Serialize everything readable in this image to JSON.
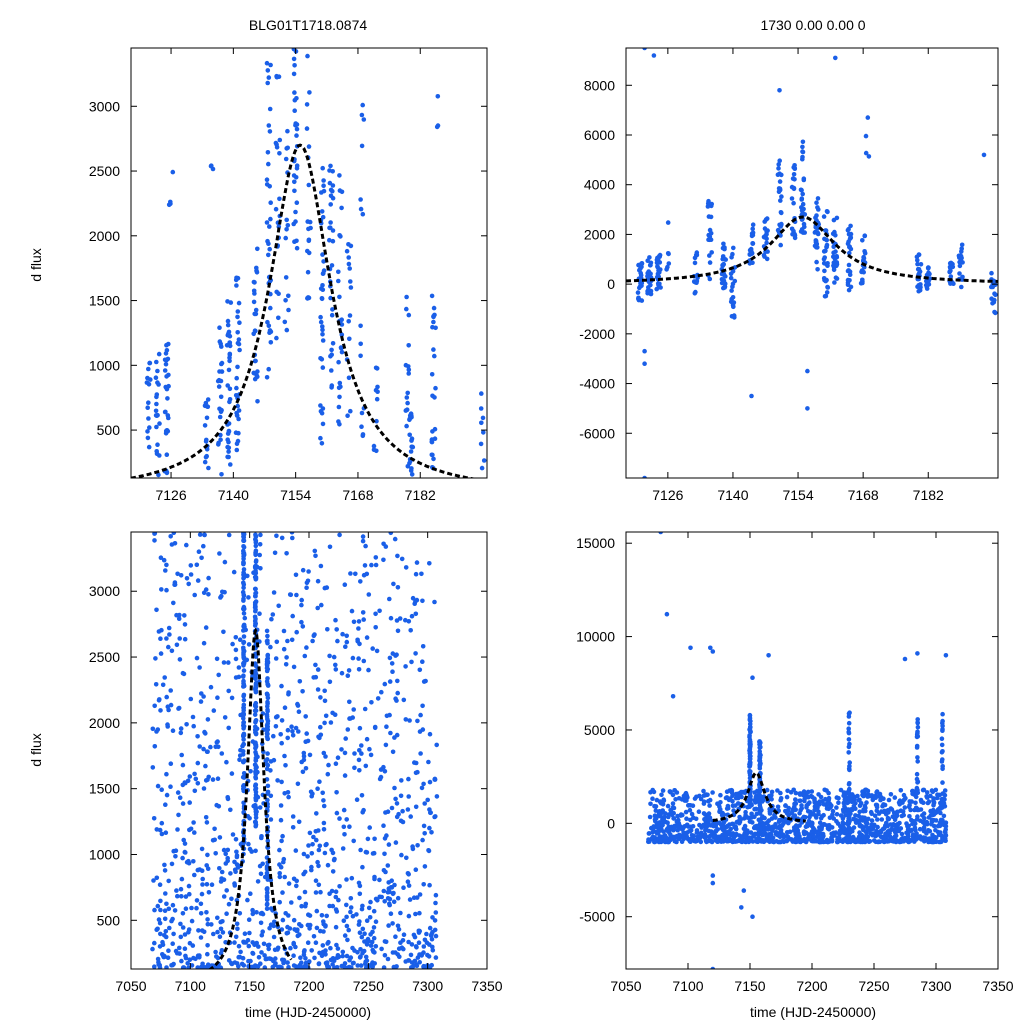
{
  "figure": {
    "title_left": "BLG01T1718.0874",
    "title_right": "1730  0.00  0.00  0",
    "ylabel": "d flux",
    "xlabel": "time (HJD-2450000)"
  },
  "colors": {
    "points": "#1a5fe8",
    "fit": "#000000",
    "frame": "#000000"
  },
  "chart_data": [
    {
      "type": "scatter",
      "id": "top-left",
      "xlim": [
        7117,
        7197
      ],
      "ylim": [
        130,
        3450
      ],
      "xticks": [
        7126,
        7140,
        7154,
        7168,
        7182
      ],
      "yticks": [
        500,
        1000,
        1500,
        2000,
        2500,
        3000
      ],
      "xlabel": "",
      "ylabel": "d flux",
      "fit": {
        "t0": 7155,
        "peak": 2700,
        "tau": 8.5
      },
      "clusters": [
        {
          "x": 7121,
          "lo": 150,
          "hi": 1100,
          "n": 14
        },
        {
          "x": 7123,
          "lo": 150,
          "hi": 1100,
          "n": 20
        },
        {
          "x": 7125,
          "lo": 150,
          "hi": 1250,
          "n": 28
        },
        {
          "x": 7126,
          "lo": 2220,
          "hi": 2520,
          "n": 4
        },
        {
          "x": 7134,
          "lo": 200,
          "hi": 750,
          "n": 15
        },
        {
          "x": 7135,
          "lo": 2140,
          "hi": 2620,
          "n": 3
        },
        {
          "x": 7137,
          "lo": 150,
          "hi": 1400,
          "n": 22
        },
        {
          "x": 7139,
          "lo": 150,
          "hi": 1500,
          "n": 35
        },
        {
          "x": 7141,
          "lo": 300,
          "hi": 1700,
          "n": 30
        },
        {
          "x": 7145,
          "lo": 700,
          "hi": 1900,
          "n": 25
        },
        {
          "x": 7148,
          "lo": 900,
          "hi": 3350,
          "n": 35
        },
        {
          "x": 7150,
          "lo": 1000,
          "hi": 3300,
          "n": 20
        },
        {
          "x": 7152,
          "lo": 1250,
          "hi": 3000,
          "n": 15
        },
        {
          "x": 7154,
          "lo": 1900,
          "hi": 3450,
          "n": 30
        },
        {
          "x": 7157,
          "lo": 1500,
          "hi": 3400,
          "n": 20
        },
        {
          "x": 7160,
          "lo": 380,
          "hi": 2600,
          "n": 35
        },
        {
          "x": 7162,
          "lo": 800,
          "hi": 2600,
          "n": 30
        },
        {
          "x": 7164,
          "lo": 500,
          "hi": 2500,
          "n": 25
        },
        {
          "x": 7166,
          "lo": 500,
          "hi": 2300,
          "n": 15
        },
        {
          "x": 7169,
          "lo": 200,
          "hi": 3300,
          "n": 15
        },
        {
          "x": 7172,
          "lo": 300,
          "hi": 1000,
          "n": 10
        },
        {
          "x": 7179,
          "lo": 150,
          "hi": 1700,
          "n": 15
        },
        {
          "x": 7180,
          "lo": 150,
          "hi": 700,
          "n": 20
        },
        {
          "x": 7185,
          "lo": 200,
          "hi": 1600,
          "n": 25
        },
        {
          "x": 7186,
          "lo": 2700,
          "hi": 3150,
          "n": 3
        },
        {
          "x": 7196,
          "lo": 150,
          "hi": 800,
          "n": 8
        }
      ]
    },
    {
      "type": "scatter",
      "id": "top-right",
      "xlim": [
        7117,
        7197
      ],
      "ylim": [
        -7800,
        9500
      ],
      "xticks": [
        7126,
        7140,
        7154,
        7168,
        7182
      ],
      "yticks": [
        -6000,
        -4000,
        -2000,
        0,
        2000,
        4000,
        6000,
        8000
      ],
      "xlabel": "",
      "ylabel": "",
      "fit": {
        "t0": 7155,
        "peak": 2700,
        "tau": 8.5,
        "base": 0
      },
      "clusters": [
        {
          "x": 7120,
          "lo": -800,
          "hi": 900,
          "n": 25
        },
        {
          "x": 7122,
          "lo": -400,
          "hi": 1100,
          "n": 25
        },
        {
          "x": 7124,
          "lo": -300,
          "hi": 1200,
          "n": 25
        },
        {
          "x": 7126,
          "lo": 500,
          "hi": 2500,
          "n": 6
        },
        {
          "x": 7132,
          "lo": -400,
          "hi": 1300,
          "n": 15
        },
        {
          "x": 7135,
          "lo": 0,
          "hi": 3400,
          "n": 20
        },
        {
          "x": 7138,
          "lo": -200,
          "hi": 1700,
          "n": 30
        },
        {
          "x": 7140,
          "lo": -1600,
          "hi": 1500,
          "n": 20
        },
        {
          "x": 7144,
          "lo": 800,
          "hi": 2400,
          "n": 20
        },
        {
          "x": 7147,
          "lo": 1000,
          "hi": 2700,
          "n": 20
        },
        {
          "x": 7150,
          "lo": 1300,
          "hi": 5300,
          "n": 25
        },
        {
          "x": 7153,
          "lo": 1200,
          "hi": 5000,
          "n": 20
        },
        {
          "x": 7155,
          "lo": 2000,
          "hi": 5900,
          "n": 30
        },
        {
          "x": 7158,
          "lo": 500,
          "hi": 3500,
          "n": 30
        },
        {
          "x": 7160,
          "lo": -600,
          "hi": 3000,
          "n": 30
        },
        {
          "x": 7162,
          "lo": 0,
          "hi": 2700,
          "n": 25
        },
        {
          "x": 7165,
          "lo": -300,
          "hi": 2400,
          "n": 25
        },
        {
          "x": 7168,
          "lo": 0,
          "hi": 2000,
          "n": 20
        },
        {
          "x": 7169,
          "lo": 4500,
          "hi": 6900,
          "n": 3
        },
        {
          "x": 7180,
          "lo": -400,
          "hi": 1200,
          "n": 20
        },
        {
          "x": 7182,
          "lo": -200,
          "hi": 800,
          "n": 15
        },
        {
          "x": 7187,
          "lo": -200,
          "hi": 1000,
          "n": 15
        },
        {
          "x": 7189,
          "lo": -300,
          "hi": 1600,
          "n": 20
        },
        {
          "x": 7196,
          "lo": -1200,
          "hi": 700,
          "n": 15
        }
      ],
      "outliers": [
        [
          7121,
          9500
        ],
        [
          7123,
          9200
        ],
        [
          7121,
          -2700
        ],
        [
          7121,
          -3200
        ],
        [
          7121,
          -7800
        ],
        [
          7150,
          7800
        ],
        [
          7156,
          -3500
        ],
        [
          7156,
          -5000
        ],
        [
          7144,
          -4500
        ],
        [
          7162,
          9100
        ],
        [
          7169,
          6700
        ],
        [
          7194,
          5200
        ]
      ]
    },
    {
      "type": "scatter",
      "id": "bottom-left",
      "xlim": [
        7050,
        7350
      ],
      "ylim": [
        130,
        3450
      ],
      "xticks": [
        7050,
        7100,
        7150,
        7200,
        7250,
        7300,
        7350
      ],
      "yticks": [
        500,
        1000,
        1500,
        2000,
        2500,
        3000
      ],
      "xlabel": "time (HJD-2450000)",
      "ylabel": "d flux",
      "fit": {
        "t0": 7155,
        "peak": 2700,
        "tau": 8.5,
        "xmin": 7110,
        "xmax": 7185
      },
      "band": {
        "xmin": 7068,
        "xmax": 7308,
        "lo": 140,
        "hi": 3450,
        "n": 1300,
        "seed": 7
      },
      "clusters": [
        {
          "x": 7145,
          "lo": 1000,
          "hi": 3450,
          "n": 120
        },
        {
          "x": 7155,
          "lo": 1200,
          "hi": 3450,
          "n": 140
        },
        {
          "x": 7165,
          "lo": 600,
          "hi": 2700,
          "n": 80
        }
      ]
    },
    {
      "type": "scatter",
      "id": "bottom-right",
      "xlim": [
        7050,
        7350
      ],
      "ylim": [
        -7800,
        15600
      ],
      "xticks": [
        7050,
        7100,
        7150,
        7200,
        7250,
        7300,
        7350
      ],
      "yticks": [
        -5000,
        0,
        5000,
        10000,
        15000
      ],
      "xlabel": "time (HJD-2450000)",
      "ylabel": "",
      "fit": {
        "t0": 7155,
        "peak": 2700,
        "tau": 8.5,
        "base": 0,
        "xmin": 7120,
        "xmax": 7195
      },
      "band": {
        "xmin": 7068,
        "xmax": 7308,
        "lo": -1000,
        "hi": 1800,
        "n": 1400,
        "seed": 11
      },
      "clusters": [
        {
          "x": 7150,
          "lo": 800,
          "hi": 5800,
          "n": 80
        },
        {
          "x": 7158,
          "lo": 500,
          "hi": 4500,
          "n": 60
        },
        {
          "x": 7230,
          "lo": 1000,
          "hi": 6000,
          "n": 20
        },
        {
          "x": 7285,
          "lo": 1000,
          "hi": 6000,
          "n": 20
        },
        {
          "x": 7305,
          "lo": 1000,
          "hi": 6000,
          "n": 20
        }
      ],
      "outliers": [
        [
          7078,
          15600
        ],
        [
          7083,
          11200
        ],
        [
          7102,
          9400
        ],
        [
          7118,
          9400
        ],
        [
          7120,
          9200
        ],
        [
          7165,
          9000
        ],
        [
          7275,
          8800
        ],
        [
          7285,
          9100
        ],
        [
          7308,
          9000
        ],
        [
          7120,
          -7800
        ],
        [
          7145,
          -3600
        ],
        [
          7152,
          -5000
        ],
        [
          7143,
          -4500
        ],
        [
          7120,
          -2800
        ],
        [
          7120,
          -3200
        ],
        [
          7088,
          6800
        ],
        [
          7152,
          7800
        ]
      ]
    }
  ]
}
